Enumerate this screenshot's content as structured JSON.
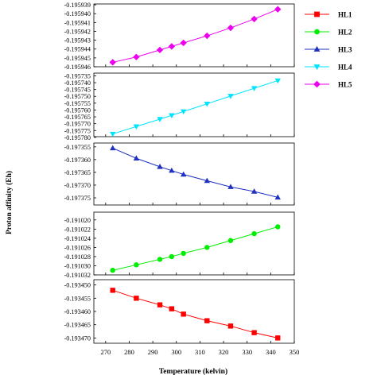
{
  "chart_data": {
    "type": "line",
    "xlabel": "Temperature (kelvin)",
    "ylabel": "Proton affinity (Eh)",
    "x_ticks": [
      270,
      280,
      290,
      300,
      310,
      320,
      330,
      340,
      350
    ],
    "xlim": [
      265,
      350
    ],
    "legend_position": "top-right",
    "series": [
      {
        "name": "HL1",
        "color": "#ff0000",
        "marker": "square",
        "x": [
          273,
          283,
          293,
          298,
          303,
          313,
          323,
          333,
          343
        ],
        "y": [
          -0.193452,
          -0.193455,
          -0.1934575,
          -0.193459,
          -0.193461,
          -0.1934635,
          -0.1934655,
          -0.193468,
          -0.19347
        ],
        "ylim": [
          -0.193472,
          -0.193448
        ],
        "y_ticks": [
          -0.19345,
          -0.193455,
          -0.19346,
          -0.193465,
          -0.19347
        ],
        "y_tick_labels": [
          "-0.193450",
          "-0.193455",
          "-0.193460",
          "-0.193465",
          "-0.193470"
        ]
      },
      {
        "name": "HL2",
        "color": "#00ee00",
        "marker": "circle",
        "x": [
          273,
          283,
          293,
          298,
          303,
          313,
          323,
          333,
          343
        ],
        "y": [
          -0.191031,
          -0.1910298,
          -0.1910286,
          -0.191028,
          -0.1910273,
          -0.191026,
          -0.1910245,
          -0.191023,
          -0.1910215
        ],
        "ylim": [
          -0.191032,
          -0.1910183
        ],
        "y_ticks": [
          -0.19102,
          -0.191022,
          -0.191024,
          -0.191026,
          -0.191028,
          -0.19103,
          -0.191032
        ],
        "y_tick_labels": [
          "-0.191020",
          "-0.191022",
          "-0.191024",
          "-0.191026",
          "-0.191028",
          "-0.191030",
          "-0.191032"
        ]
      },
      {
        "name": "HL3",
        "color": "#2030c0",
        "marker": "triangle-up",
        "x": [
          273,
          283,
          293,
          298,
          303,
          313,
          323,
          333,
          343
        ],
        "y": [
          -0.1973555,
          -0.1973595,
          -0.1973628,
          -0.1973643,
          -0.1973658,
          -0.1973683,
          -0.1973707,
          -0.1973725,
          -0.1973748
        ],
        "ylim": [
          -0.1973778,
          -0.1973535
        ],
        "y_ticks": [
          -0.197355,
          -0.19736,
          -0.197365,
          -0.19737,
          -0.197375
        ],
        "y_tick_labels": [
          "-0.197355",
          "-0.197360",
          "-0.197365",
          "-0.197370",
          "-0.197375"
        ]
      },
      {
        "name": "HL4",
        "color": "#00e5ff",
        "marker": "triangle-down",
        "x": [
          273,
          283,
          293,
          298,
          303,
          313,
          323,
          333,
          343
        ],
        "y": [
          -0.1957775,
          -0.1957721,
          -0.1957667,
          -0.1957639,
          -0.1957611,
          -0.1957555,
          -0.1957498,
          -0.1957441,
          -0.1957385
        ],
        "ylim": [
          -0.1957795,
          -0.195733
        ],
        "y_ticks": [
          -0.195735,
          -0.19574,
          -0.195745,
          -0.19575,
          -0.195755,
          -0.19576,
          -0.195765,
          -0.19577,
          -0.195775,
          -0.19578
        ],
        "y_tick_labels": [
          "-0.195735",
          "-0.195740",
          "-0.195745",
          "-0.195750",
          "-0.195755",
          "-0.195760",
          "-0.195765",
          "-0.195770",
          "-0.195775",
          "-0.195780"
        ]
      },
      {
        "name": "HL5",
        "color": "#ee00ee",
        "marker": "diamond",
        "x": [
          273,
          283,
          293,
          298,
          303,
          313,
          323,
          333,
          343
        ],
        "y": [
          -0.1959455,
          -0.1959449,
          -0.1959441,
          -0.1959437,
          -0.1959433,
          -0.1959425,
          -0.1959416,
          -0.1959406,
          -0.1959395
        ],
        "ylim": [
          -0.195946,
          -0.1959389
        ],
        "y_ticks": [
          -0.195939,
          -0.19594,
          -0.195941,
          -0.195942,
          -0.195943,
          -0.195944,
          -0.195945,
          -0.195946
        ],
        "y_tick_labels": [
          "-0.195939",
          "-0.195940",
          "-0.195941",
          "-0.195942",
          "-0.195943",
          "-0.195944",
          "-0.195945",
          "-0.195946"
        ]
      }
    ]
  }
}
